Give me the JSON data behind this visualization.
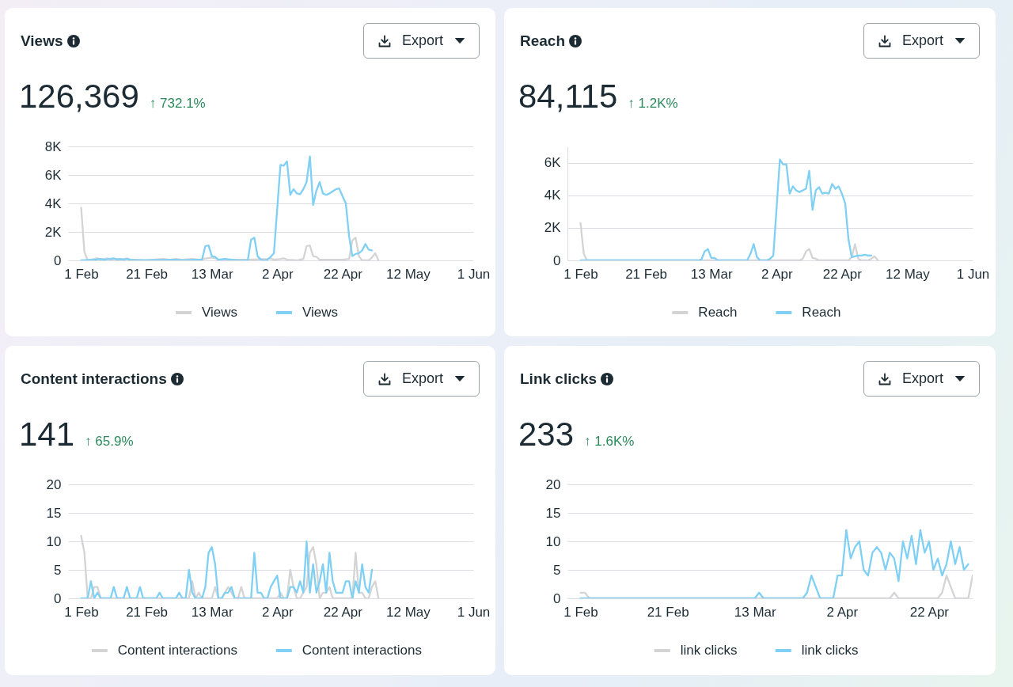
{
  "chart_data": [
    {
      "type": "line",
      "title": "Views",
      "subtitle": "126,369",
      "annotations": [
        "↑ 732.1%",
        "Export"
      ],
      "xlim": [
        "--01-28",
        "--06-01"
      ],
      "xticks": [
        {
          "value": "--02-01",
          "label": "1 Feb"
        },
        {
          "value": "--02-21",
          "label": "21 Feb"
        },
        {
          "value": "--03-13",
          "label": "13 Mar"
        },
        {
          "value": "--04-02",
          "label": "2 Apr"
        },
        {
          "value": "--04-22",
          "label": "22 Apr"
        },
        {
          "value": "--05-12",
          "label": "12 May"
        },
        {
          "value": "--06-01",
          "label": "1 Jun"
        }
      ],
      "ylim": [
        0,
        8000
      ],
      "yticks": [
        0,
        {
          "value": 2000,
          "label": "2K"
        },
        {
          "value": 4000,
          "label": "4K"
        },
        {
          "value": 6000,
          "label": "6K"
        },
        {
          "value": 8000,
          "label": "8K"
        }
      ],
      "grid": "y",
      "legend": "bottom",
      "series": [
        {
          "name": "Views",
          "color": "#d4d4d4",
          "x": [
            "--02-01",
            "--02-02",
            "--02-03",
            "--02-05",
            "--02-06",
            "--02-07",
            "--02-09",
            "--02-10",
            "--02-12",
            "--02-13",
            "--02-15",
            "--02-16",
            "--02-18",
            "--02-21",
            "--02-26",
            "--02-28",
            "--03-02",
            "--03-04",
            "--03-07",
            "--03-09",
            "--03-13",
            "--03-14",
            "--03-15",
            "--03-18",
            "--03-24",
            "--03-30",
            "--03-31",
            "--04-01",
            "--04-03",
            "--04-04",
            "--04-05",
            "--04-08",
            "--04-10",
            "--04-11",
            "--04-12",
            "--04-13",
            "--04-14",
            "--04-15",
            "--04-18",
            "--04-22",
            "--04-24",
            "--04-25",
            "--04-26",
            "--04-27",
            "--04-28",
            "--04-30",
            "--05-01",
            "--05-02",
            "--05-03"
          ],
          "values": [
            3700,
            600,
            0,
            100,
            150,
            50,
            150,
            50,
            100,
            50,
            150,
            50,
            50,
            0,
            100,
            50,
            100,
            50,
            100,
            50,
            200,
            150,
            50,
            50,
            50,
            100,
            150,
            50,
            100,
            150,
            50,
            0,
            100,
            1000,
            1050,
            300,
            250,
            50,
            50,
            50,
            100,
            1400,
            1600,
            300,
            0,
            0,
            200,
            500,
            0
          ]
        },
        {
          "name": "Views",
          "color": "#7fd0f4",
          "x": [
            "--02-01",
            "--02-05",
            "--02-07",
            "--02-08",
            "--02-11",
            "--02-12",
            "--02-13",
            "--02-14",
            "--02-15",
            "--02-16",
            "--02-18",
            "--03-02",
            "--03-04",
            "--03-08",
            "--03-10",
            "--03-11",
            "--03-12",
            "--03-13",
            "--03-14",
            "--03-15",
            "--03-17",
            "--03-19",
            "--03-21",
            "--03-24",
            "--03-25",
            "--03-26",
            "--03-27",
            "--03-28",
            "--03-29",
            "--03-30",
            "--03-31",
            "--04-01",
            "--04-02",
            "--04-03",
            "--04-04",
            "--04-05",
            "--04-06",
            "--04-07",
            "--04-08",
            "--04-09",
            "--04-10",
            "--04-11",
            "--04-12",
            "--04-13",
            "--04-14",
            "--04-15",
            "--04-16",
            "--04-17",
            "--04-18",
            "--04-19",
            "--04-20",
            "--04-21",
            "--04-22",
            "--04-23",
            "--04-24",
            "--04-25",
            "--04-26",
            "--04-27",
            "--04-28",
            "--04-29",
            "--04-30",
            "--05-01"
          ],
          "values": [
            0,
            50,
            100,
            50,
            150,
            50,
            100,
            50,
            100,
            50,
            0,
            50,
            0,
            50,
            50,
            1000,
            1050,
            300,
            250,
            50,
            100,
            50,
            0,
            0,
            1450,
            1600,
            300,
            50,
            0,
            50,
            250,
            500,
            3600,
            6700,
            6650,
            6950,
            4600,
            5000,
            4700,
            4650,
            5000,
            5500,
            7300,
            3900,
            4900,
            5500,
            4700,
            4600,
            4700,
            4850,
            5000,
            5050,
            4500,
            4000,
            1700,
            300,
            450,
            500,
            700,
            1150,
            750,
            700
          ]
        }
      ]
    },
    {
      "type": "line",
      "title": "Reach",
      "subtitle": "84,115",
      "annotations": [
        "↑ 1.2K%",
        "Export"
      ],
      "xlim": [
        "--01-28",
        "--06-01"
      ],
      "xticks": [
        {
          "value": "--02-01",
          "label": "1 Feb"
        },
        {
          "value": "--02-21",
          "label": "21 Feb"
        },
        {
          "value": "--03-13",
          "label": "13 Mar"
        },
        {
          "value": "--04-02",
          "label": "2 Apr"
        },
        {
          "value": "--04-22",
          "label": "22 Apr"
        },
        {
          "value": "--05-12",
          "label": "12 May"
        },
        {
          "value": "--06-01",
          "label": "1 Jun"
        }
      ],
      "ylim": [
        0,
        7000
      ],
      "yticks": [
        0,
        {
          "value": 2000,
          "label": "2K"
        },
        {
          "value": 4000,
          "label": "4K"
        },
        {
          "value": 6000,
          "label": "6K"
        }
      ],
      "grid": "y",
      "legend": "bottom",
      "series": [
        {
          "name": "Reach",
          "color": "#d4d4d4",
          "x": [
            "--02-01",
            "--02-02",
            "--02-03",
            "--04-09",
            "--04-10",
            "--04-11",
            "--04-12",
            "--04-13",
            "--04-14",
            "--04-15",
            "--04-24",
            "--04-25",
            "--04-26",
            "--04-27",
            "--04-28",
            "--04-30",
            "--05-01",
            "--05-02",
            "--05-03"
          ],
          "values": [
            2300,
            400,
            0,
            0,
            100,
            550,
            700,
            150,
            100,
            0,
            0,
            200,
            1000,
            100,
            0,
            0,
            100,
            250,
            0
          ]
        },
        {
          "name": "Reach",
          "color": "#7fd0f4",
          "x": [
            "--02-01",
            "--03-09",
            "--03-10",
            "--03-11",
            "--03-12",
            "--03-13",
            "--03-14",
            "--03-15",
            "--03-24",
            "--03-25",
            "--03-26",
            "--03-27",
            "--03-28",
            "--03-30",
            "--03-31",
            "--04-01",
            "--04-02",
            "--04-03",
            "--04-04",
            "--04-05",
            "--04-06",
            "--04-07",
            "--04-08",
            "--04-09",
            "--04-10",
            "--04-11",
            "--04-12",
            "--04-13",
            "--04-14",
            "--04-15",
            "--04-16",
            "--04-17",
            "--04-18",
            "--04-19",
            "--04-20",
            "--04-21",
            "--04-22",
            "--04-23",
            "--04-24",
            "--04-25",
            "--04-26",
            "--04-27",
            "--04-28",
            "--04-29",
            "--04-30",
            "--05-01"
          ],
          "values": [
            0,
            0,
            50,
            550,
            700,
            150,
            150,
            0,
            0,
            400,
            1000,
            200,
            0,
            0,
            100,
            300,
            3200,
            6200,
            5900,
            5900,
            4100,
            4550,
            4300,
            4200,
            4300,
            4400,
            5500,
            3100,
            4300,
            4500,
            4100,
            4150,
            4100,
            4700,
            4400,
            4550,
            4100,
            3500,
            1300,
            200,
            250,
            300,
            300,
            350,
            300,
            300
          ]
        }
      ]
    },
    {
      "type": "line",
      "title": "Content interactions",
      "subtitle": "141",
      "annotations": [
        "↑ 65.9%",
        "Export"
      ],
      "xlim": [
        "--01-28",
        "--06-01"
      ],
      "xticks": [
        {
          "value": "--02-01",
          "label": "1 Feb"
        },
        {
          "value": "--02-21",
          "label": "21 Feb"
        },
        {
          "value": "--03-13",
          "label": "13 Mar"
        },
        {
          "value": "--04-02",
          "label": "2 Apr"
        },
        {
          "value": "--04-22",
          "label": "22 Apr"
        },
        {
          "value": "--05-12",
          "label": "12 May"
        },
        {
          "value": "--06-01",
          "label": "1 Jun"
        }
      ],
      "ylim": [
        0,
        20
      ],
      "yticks": [
        0,
        5,
        10,
        15,
        20
      ],
      "grid": "y",
      "legend": "bottom",
      "series": [
        {
          "name": "Content interactions",
          "color": "#d4d4d4",
          "x": [
            "--02-01",
            "--02-02",
            "--02-03",
            "--02-04",
            "--02-05",
            "--02-06",
            "--02-07",
            "--03-06",
            "--03-07",
            "--03-08",
            "--03-09",
            "--03-10",
            "--03-13",
            "--03-14",
            "--03-15",
            "--03-16",
            "--03-17",
            "--03-18",
            "--03-19",
            "--03-20",
            "--03-21",
            "--03-22",
            "--03-23",
            "--04-02",
            "--04-03",
            "--04-04",
            "--04-05",
            "--04-06",
            "--04-07",
            "--04-08",
            "--04-09",
            "--04-10",
            "--04-11",
            "--04-12",
            "--04-13",
            "--04-14",
            "--04-15",
            "--04-16",
            "--04-17",
            "--04-18",
            "--04-19",
            "--04-25",
            "--04-26",
            "--04-27",
            "--04-28",
            "--04-29",
            "--04-30",
            "--05-01",
            "--05-02",
            "--05-03"
          ],
          "values": [
            11,
            8,
            0,
            0,
            2,
            2,
            0,
            0,
            3,
            0,
            1,
            0,
            0,
            2,
            0,
            0,
            1,
            2,
            1,
            0,
            0,
            2,
            0,
            0,
            1,
            0,
            0,
            5,
            2,
            0,
            0,
            1,
            2,
            8,
            9,
            6,
            0,
            1,
            1,
            2,
            0,
            0,
            8,
            1,
            1,
            0,
            0,
            2,
            3,
            0
          ]
        },
        {
          "name": "Content interactions",
          "color": "#7fd0f4",
          "x": [
            "--02-01",
            "--02-03",
            "--02-04",
            "--02-05",
            "--02-06",
            "--02-07",
            "--02-10",
            "--02-11",
            "--02-12",
            "--02-14",
            "--02-15",
            "--02-16",
            "--02-18",
            "--02-19",
            "--02-20",
            "--02-24",
            "--02-25",
            "--02-26",
            "--03-02",
            "--03-03",
            "--03-04",
            "--03-05",
            "--03-06",
            "--03-07",
            "--03-08",
            "--03-10",
            "--03-11",
            "--03-12",
            "--03-13",
            "--03-14",
            "--03-15",
            "--03-16",
            "--03-17",
            "--03-18",
            "--03-19",
            "--03-20",
            "--03-25",
            "--03-26",
            "--03-27",
            "--03-28",
            "--03-29",
            "--03-30",
            "--03-31",
            "--04-01",
            "--04-02",
            "--04-03",
            "--04-05",
            "--04-06",
            "--04-07",
            "--04-08",
            "--04-09",
            "--04-10",
            "--04-11",
            "--04-12",
            "--04-13",
            "--04-14",
            "--04-15",
            "--04-16",
            "--04-17",
            "--04-18",
            "--04-19",
            "--04-20",
            "--04-21",
            "--04-22",
            "--04-23",
            "--04-24",
            "--04-25",
            "--04-26",
            "--04-27",
            "--04-28",
            "--04-29",
            "--04-30",
            "--05-01"
          ],
          "values": [
            0,
            0,
            3,
            0,
            1,
            0,
            0,
            2,
            0,
            0,
            2,
            0,
            0,
            2,
            0,
            0,
            1,
            0,
            0,
            1,
            0,
            0,
            5,
            1,
            0,
            0,
            2,
            8,
            9,
            6,
            0,
            0,
            1,
            1,
            2,
            0,
            0,
            8,
            1,
            1,
            0,
            0,
            2,
            3,
            4,
            0,
            0,
            2,
            2,
            1,
            3,
            1,
            10,
            1,
            6,
            1,
            3,
            6,
            1,
            8,
            3,
            1,
            1,
            1,
            3,
            3,
            0,
            3,
            1,
            6,
            2,
            1,
            5
          ]
        }
      ]
    },
    {
      "type": "line",
      "title": "Link clicks",
      "subtitle": "233",
      "annotations": [
        "↑ 1.6K%",
        "Export"
      ],
      "xlim": [
        "--01-29",
        "--05-02"
      ],
      "xticks": [
        {
          "value": "--02-01",
          "label": "1 Feb"
        },
        {
          "value": "--02-21",
          "label": "21 Feb"
        },
        {
          "value": "--03-13",
          "label": "13 Mar"
        },
        {
          "value": "--04-02",
          "label": "2 Apr"
        },
        {
          "value": "--04-22",
          "label": "22 Apr"
        }
      ],
      "ylim": [
        0,
        20
      ],
      "yticks": [
        0,
        5,
        10,
        15,
        20
      ],
      "grid": "y",
      "legend": "bottom",
      "series": [
        {
          "name": "link clicks",
          "color": "#d4d4d4",
          "x": [
            "--02-01",
            "--02-02",
            "--02-03",
            "--04-13",
            "--04-14",
            "--04-15",
            "--04-24",
            "--04-25",
            "--04-26",
            "--04-27",
            "--04-28",
            "--05-01",
            "--05-02"
          ],
          "values": [
            1,
            1,
            0,
            0,
            1,
            0,
            0,
            1,
            4,
            2,
            0,
            0,
            4
          ]
        },
        {
          "name": "link clicks",
          "color": "#7fd0f4",
          "x": [
            "--02-01",
            "--03-13",
            "--03-14",
            "--03-15",
            "--03-24",
            "--03-25",
            "--03-26",
            "--03-27",
            "--03-28",
            "--03-31",
            "--04-01",
            "--04-02",
            "--04-03",
            "--04-04",
            "--04-05",
            "--04-06",
            "--04-07",
            "--04-08",
            "--04-09",
            "--04-10",
            "--04-11",
            "--04-12",
            "--04-13",
            "--04-14",
            "--04-15",
            "--04-16",
            "--04-17",
            "--04-18",
            "--04-19",
            "--04-20",
            "--04-21",
            "--04-22",
            "--04-23",
            "--04-24",
            "--04-25",
            "--04-26",
            "--04-27",
            "--04-28",
            "--04-29",
            "--04-30",
            "--05-01"
          ],
          "values": [
            0,
            0,
            1,
            0,
            0,
            1,
            4,
            2,
            0,
            0,
            4,
            4,
            12,
            7,
            9,
            10,
            5,
            4,
            8,
            9,
            8,
            5,
            8,
            7,
            3,
            10,
            7,
            11,
            6,
            12,
            8,
            10,
            5,
            7,
            4,
            6,
            10,
            6,
            9,
            5,
            6
          ]
        }
      ]
    }
  ]
}
